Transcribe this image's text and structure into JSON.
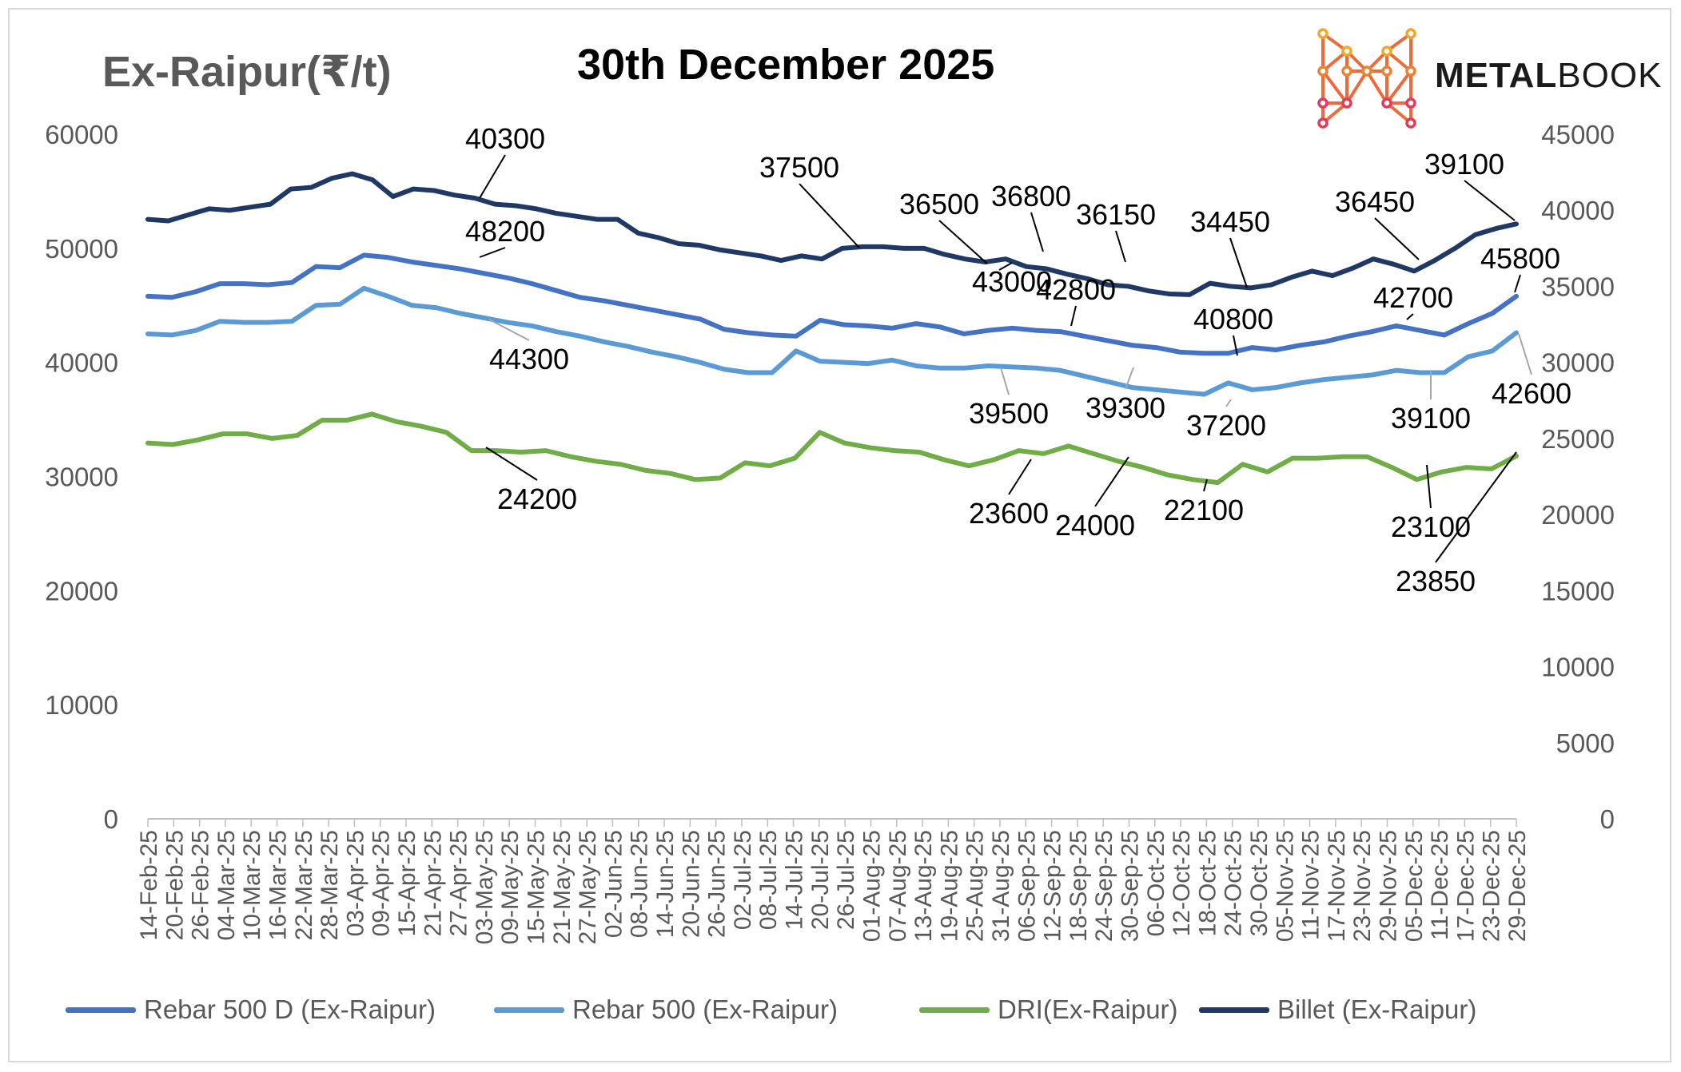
{
  "header": {
    "yaxis_title": "Ex-Raipur(₹/t)",
    "chart_title": "30th December 2025"
  },
  "logo": {
    "text_bold": "METAL",
    "text_light": "BOOK",
    "icon": "metalbook-m-network-icon"
  },
  "legend": {
    "items": [
      {
        "label": "Rebar 500 D (Ex-Raipur)",
        "color": "#4472C4"
      },
      {
        "label": "Rebar 500 (Ex-Raipur)",
        "color": "#5B9BD5"
      },
      {
        "label": "DRI(Ex-Raipur)",
        "color": "#70AD47"
      },
      {
        "label": "Billet (Ex-Raipur)",
        "color": "#203864"
      }
    ]
  },
  "chart_data": {
    "type": "line",
    "title": "30th December 2025",
    "ylabel": "Ex-Raipur(₹/t)",
    "ylim_left": [
      0,
      60000
    ],
    "ylim_right": [
      0,
      45000
    ],
    "yticks_left": [
      "0",
      "10000",
      "20000",
      "30000",
      "40000",
      "50000",
      "60000"
    ],
    "yticks_right": [
      "0",
      "5000",
      "10000",
      "15000",
      "20000",
      "25000",
      "30000",
      "35000",
      "40000",
      "45000"
    ],
    "x_tick_labels": [
      "14-Feb-25",
      "20-Feb-25",
      "26-Feb-25",
      "04-Mar-25",
      "10-Mar-25",
      "16-Mar-25",
      "22-Mar-25",
      "28-Mar-25",
      "03-Apr-25",
      "09-Apr-25",
      "15-Apr-25",
      "21-Apr-25",
      "27-Apr-25",
      "03-May-25",
      "09-May-25",
      "15-May-25",
      "21-May-25",
      "27-May-25",
      "02-Jun-25",
      "08-Jun-25",
      "14-Jun-25",
      "20-Jun-25",
      "26-Jun-25",
      "02-Jul-25",
      "08-Jul-25",
      "14-Jul-25",
      "20-Jul-25",
      "26-Jul-25",
      "01-Aug-25",
      "07-Aug-25",
      "13-Aug-25",
      "19-Aug-25",
      "25-Aug-25",
      "31-Aug-25",
      "06-Sep-25",
      "12-Sep-25",
      "18-Sep-25",
      "24-Sep-25",
      "30-Sep-25",
      "06-Oct-25",
      "12-Oct-25",
      "18-Oct-25",
      "24-Oct-25",
      "30-Oct-25",
      "05-Nov-25",
      "11-Nov-25",
      "17-Nov-25",
      "23-Nov-25",
      "29-Nov-25",
      "05-Dec-25",
      "11-Dec-25",
      "17-Dec-25",
      "23-Dec-25",
      "29-Dec-25"
    ],
    "grid": false,
    "legend_position": "bottom",
    "series": [
      {
        "name": "Billet (Ex-Raipur)",
        "axis": "right",
        "color": "#203864",
        "values": [
          39400,
          39300,
          39700,
          40100,
          40000,
          40200,
          40400,
          41400,
          41500,
          42100,
          42400,
          42000,
          40900,
          41400,
          41300,
          41000,
          40800,
          40400,
          40300,
          40100,
          39800,
          39600,
          39400,
          39400,
          38500,
          38200,
          37800,
          37700,
          37400,
          37200,
          37000,
          36700,
          37000,
          36800,
          37500,
          37600,
          37600,
          37500,
          37500,
          37100,
          36800,
          36600,
          36800,
          36300,
          36150,
          35800,
          35500,
          35100,
          35000,
          34700,
          34500,
          34450,
          35200,
          35000,
          34900,
          35100,
          35600,
          36000,
          35700,
          36200,
          36800,
          36450,
          36000,
          36700,
          37500,
          38400,
          38800,
          39100
        ]
      },
      {
        "name": "Rebar 500 D (Ex-Raipur)",
        "axis": "left",
        "color": "#4472C4",
        "values": [
          45800,
          45700,
          46200,
          46900,
          46900,
          46800,
          47000,
          48400,
          48300,
          49400,
          49200,
          48800,
          48500,
          48200,
          47800,
          47400,
          46900,
          46300,
          45700,
          45400,
          45000,
          44600,
          44200,
          43800,
          42900,
          42600,
          42400,
          42300,
          43700,
          43300,
          43200,
          43000,
          43400,
          43100,
          42500,
          42800,
          43000,
          42800,
          42700,
          42300,
          41900,
          41500,
          41300,
          40900,
          40800,
          40800,
          41300,
          41100,
          41500,
          41800,
          42300,
          42700,
          43200,
          42800,
          42400,
          43400,
          44300,
          45800
        ]
      },
      {
        "name": "Rebar 500 (Ex-Raipur)",
        "axis": "left",
        "color": "#5B9BD5",
        "values": [
          42500,
          42400,
          42800,
          43600,
          43500,
          43500,
          43600,
          45000,
          45100,
          46500,
          45800,
          45000,
          44800,
          44300,
          43900,
          43500,
          43200,
          42700,
          42300,
          41800,
          41400,
          40900,
          40500,
          40000,
          39400,
          39100,
          39100,
          41000,
          40100,
          40000,
          39900,
          40200,
          39700,
          39500,
          39500,
          39700,
          39600,
          39500,
          39300,
          38800,
          38300,
          37800,
          37600,
          37400,
          37200,
          38200,
          37600,
          37800,
          38200,
          38500,
          38700,
          38900,
          39300,
          39100,
          39100,
          40500,
          41000,
          42600
        ]
      },
      {
        "name": "DRI(Ex-Raipur)",
        "axis": "right",
        "color": "#70AD47",
        "values": [
          24700,
          24600,
          24900,
          25300,
          25300,
          25000,
          25200,
          26200,
          26200,
          26600,
          26100,
          25800,
          25400,
          24200,
          24200,
          24100,
          24200,
          23800,
          23500,
          23300,
          22900,
          22700,
          22300,
          22400,
          23400,
          23200,
          23700,
          25400,
          24700,
          24400,
          24200,
          24100,
          23600,
          23200,
          23600,
          24200,
          24000,
          24500,
          24000,
          23500,
          23100,
          22600,
          22300,
          22100,
          23300,
          22800,
          23700,
          23700,
          23800,
          23800,
          23100,
          22300,
          22800,
          23100,
          23000,
          23850
        ]
      }
    ],
    "annotations": [
      {
        "series": "Billet (Ex-Raipur)",
        "value": "40300"
      },
      {
        "series": "Billet (Ex-Raipur)",
        "value": "37500"
      },
      {
        "series": "Billet (Ex-Raipur)",
        "value": "36500"
      },
      {
        "series": "Billet (Ex-Raipur)",
        "value": "36800"
      },
      {
        "series": "Billet (Ex-Raipur)",
        "value": "36150"
      },
      {
        "series": "Billet (Ex-Raipur)",
        "value": "34450"
      },
      {
        "series": "Billet (Ex-Raipur)",
        "value": "36450"
      },
      {
        "series": "Billet (Ex-Raipur)",
        "value": "39100"
      },
      {
        "series": "Rebar 500 D (Ex-Raipur)",
        "value": "48200"
      },
      {
        "series": "Rebar 500 D (Ex-Raipur)",
        "value": "43000"
      },
      {
        "series": "Rebar 500 D (Ex-Raipur)",
        "value": "42800"
      },
      {
        "series": "Rebar 500 D (Ex-Raipur)",
        "value": "40800"
      },
      {
        "series": "Rebar 500 D (Ex-Raipur)",
        "value": "42700"
      },
      {
        "series": "Rebar 500 D (Ex-Raipur)",
        "value": "45800"
      },
      {
        "series": "Rebar 500 (Ex-Raipur)",
        "value": "44300"
      },
      {
        "series": "Rebar 500 (Ex-Raipur)",
        "value": "39500"
      },
      {
        "series": "Rebar 500 (Ex-Raipur)",
        "value": "39300"
      },
      {
        "series": "Rebar 500 (Ex-Raipur)",
        "value": "37200"
      },
      {
        "series": "Rebar 500 (Ex-Raipur)",
        "value": "39100"
      },
      {
        "series": "Rebar 500 (Ex-Raipur)",
        "value": "42600"
      },
      {
        "series": "DRI(Ex-Raipur)",
        "value": "24200"
      },
      {
        "series": "DRI(Ex-Raipur)",
        "value": "23600"
      },
      {
        "series": "DRI(Ex-Raipur)",
        "value": "24000"
      },
      {
        "series": "DRI(Ex-Raipur)",
        "value": "22100"
      },
      {
        "series": "DRI(Ex-Raipur)",
        "value": "23100"
      },
      {
        "series": "DRI(Ex-Raipur)",
        "value": "23850"
      }
    ]
  }
}
